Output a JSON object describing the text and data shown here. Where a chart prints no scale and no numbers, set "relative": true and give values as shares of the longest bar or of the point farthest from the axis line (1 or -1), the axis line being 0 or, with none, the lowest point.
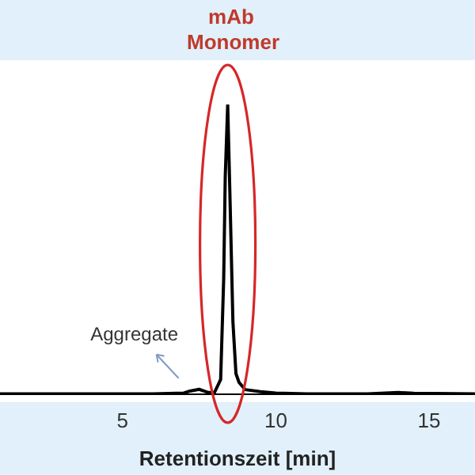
{
  "chart_data": {
    "type": "line",
    "title": "mAb Monomer",
    "xlabel": "Retentionszeit [min]",
    "relative": true,
    "xlim": [
      1,
      16.5
    ],
    "xticks": [
      5,
      10,
      15
    ],
    "grid": false,
    "legend": false,
    "marker": "none",
    "line_style": "solid",
    "annotations": [
      {
        "text": "Aggregate",
        "x": 7.5,
        "y": 0.016
      }
    ],
    "series": [
      {
        "color": "#000000",
        "x": [
          1,
          6,
          7,
          7.2,
          7.5,
          7.8,
          8.0,
          8.2,
          8.3,
          8.35,
          8.43,
          8.5,
          8.6,
          8.7,
          8.8,
          9.0,
          9.5,
          10,
          11,
          13,
          14,
          14.5,
          16.5
        ],
        "values": [
          0,
          0,
          0.003,
          0.01,
          0.016,
          0.005,
          0.005,
          0.05,
          0.4,
          0.75,
          1,
          0.7,
          0.25,
          0.07,
          0.04,
          0.015,
          0.008,
          0.003,
          0,
          0,
          0.005,
          0.002,
          0
        ]
      }
    ]
  }
}
